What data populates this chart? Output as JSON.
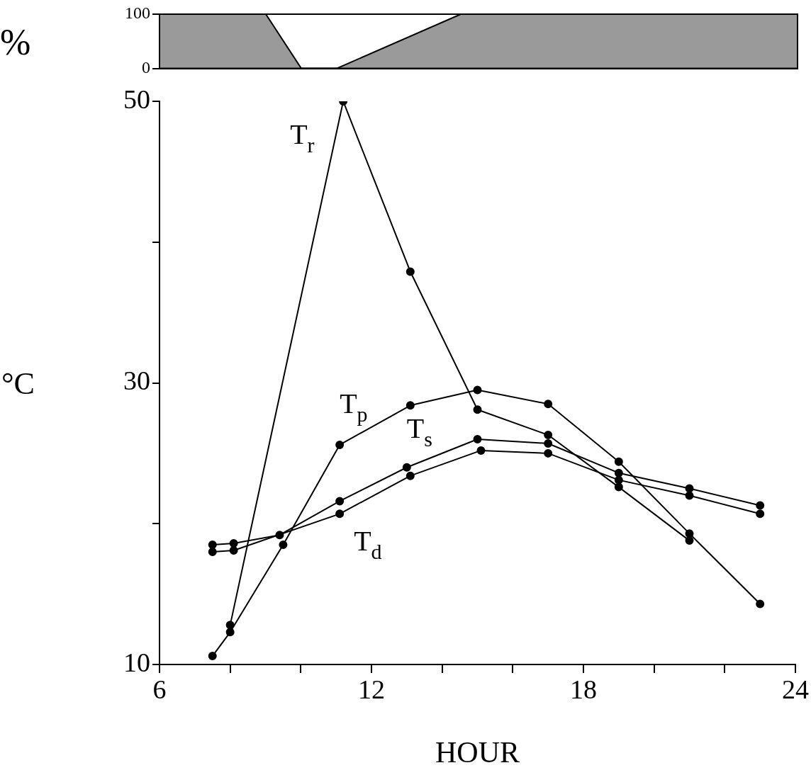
{
  "chart_data": [
    {
      "type": "area",
      "ylabel": "%",
      "x": [
        6,
        9,
        10,
        11,
        14.5,
        24
      ],
      "values": [
        100,
        100,
        0,
        0,
        100,
        100
      ],
      "color": "#9a9a9a",
      "xlim": [
        6,
        24
      ],
      "ylim": [
        0,
        100
      ],
      "yticks": [
        0,
        100
      ],
      "tick_labels": "y",
      "grid": false,
      "legend": false
    },
    {
      "type": "line",
      "xlabel": "HOUR",
      "ylabel": "°C",
      "xlim": [
        6,
        24
      ],
      "ylim": [
        10,
        50
      ],
      "xticks": [
        6,
        {
          "value": 8,
          "label": null
        },
        {
          "value": 10,
          "label": null
        },
        12,
        {
          "value": 14,
          "label": null
        },
        {
          "value": 16,
          "label": null
        },
        18,
        {
          "value": 20,
          "label": null
        },
        {
          "value": 22,
          "label": null
        },
        24
      ],
      "yticks": [
        10,
        {
          "value": 20,
          "label": null
        },
        30,
        {
          "value": 40,
          "label": null
        },
        50
      ],
      "grid": false,
      "legend": false,
      "line_style": "solid",
      "series": [
        {
          "name": "T$_{r}$",
          "color": "#000000",
          "marker": "circle",
          "x": [
            8,
            11.2,
            13.1,
            15,
            17,
            19,
            21
          ],
          "values": [
            12.8,
            50,
            37.9,
            28.1,
            26.3,
            22.6,
            18.8
          ]
        },
        {
          "name": "T$_{p}$",
          "color": "#000000",
          "marker": "circle",
          "x": [
            7.5,
            8,
            9.5,
            11.1,
            13.1,
            15,
            17,
            19,
            21,
            23
          ],
          "values": [
            10.6,
            12.3,
            18.5,
            25.6,
            28.4,
            29.5,
            28.5,
            24.4,
            19.3,
            14.3
          ]
        },
        {
          "name": "T$_{s}$",
          "color": "#000000",
          "marker": "circle",
          "x": [
            7.5,
            8.1,
            9.4,
            11.1,
            13,
            15,
            17,
            19,
            21,
            23
          ],
          "values": [
            18.5,
            18.6,
            19.2,
            21.6,
            24,
            26,
            25.7,
            23.6,
            22.5,
            21.3
          ]
        },
        {
          "name": "T$_{d}$",
          "color": "#000000",
          "marker": "circle",
          "x": [
            7.5,
            8.1,
            9.5,
            11.1,
            13.1,
            15.1,
            17,
            19,
            21,
            23
          ],
          "values": [
            18,
            18.1,
            null,
            20.7,
            23.4,
            25.2,
            25,
            23.1,
            22,
            20.7
          ]
        }
      ]
    }
  ]
}
